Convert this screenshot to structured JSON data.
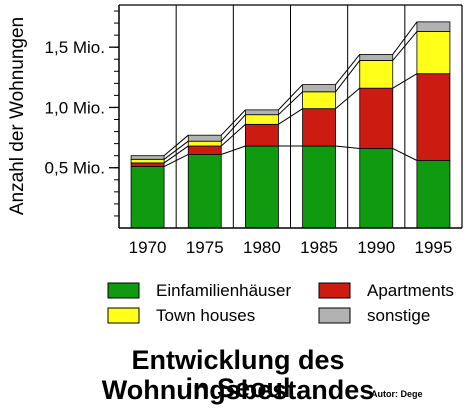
{
  "chart_data": {
    "type": "bar",
    "stacked": true,
    "ylabel": "Anzahl der Wohnungen",
    "xlabel": "",
    "ylim": [
      0,
      1.85
    ],
    "y_ticks": [
      {
        "value": 0.5,
        "label": "0,5 Mio."
      },
      {
        "value": 1.0,
        "label": "1,0 Mio."
      },
      {
        "value": 1.5,
        "label": "1,5 Mio."
      }
    ],
    "minor_tick_step": 0.1,
    "grid": "vertical lines between categories",
    "categories": [
      "1970",
      "1975",
      "1980",
      "1985",
      "1990",
      "1995"
    ],
    "series": [
      {
        "name": "Einfamilienhäuser",
        "color": "#109a10",
        "values": [
          0.51,
          0.61,
          0.68,
          0.68,
          0.66,
          0.56
        ]
      },
      {
        "name": "Apartments",
        "color": "#cc1b10",
        "values": [
          0.03,
          0.07,
          0.18,
          0.31,
          0.5,
          0.72
        ]
      },
      {
        "name": "Town houses",
        "color": "#ffff1a",
        "values": [
          0.03,
          0.04,
          0.08,
          0.14,
          0.23,
          0.35
        ]
      },
      {
        "name": "sonstige",
        "color": "#b2b2b2",
        "values": [
          0.03,
          0.05,
          0.04,
          0.06,
          0.05,
          0.08
        ]
      }
    ],
    "legend_position": "bottom",
    "title": "Entwicklung des Wohnungsbestandes in Seoul",
    "title_lines": [
      "Entwicklung des Wohnungsbestandes",
      "in Seoul"
    ],
    "credit": "Autor: Dege"
  }
}
